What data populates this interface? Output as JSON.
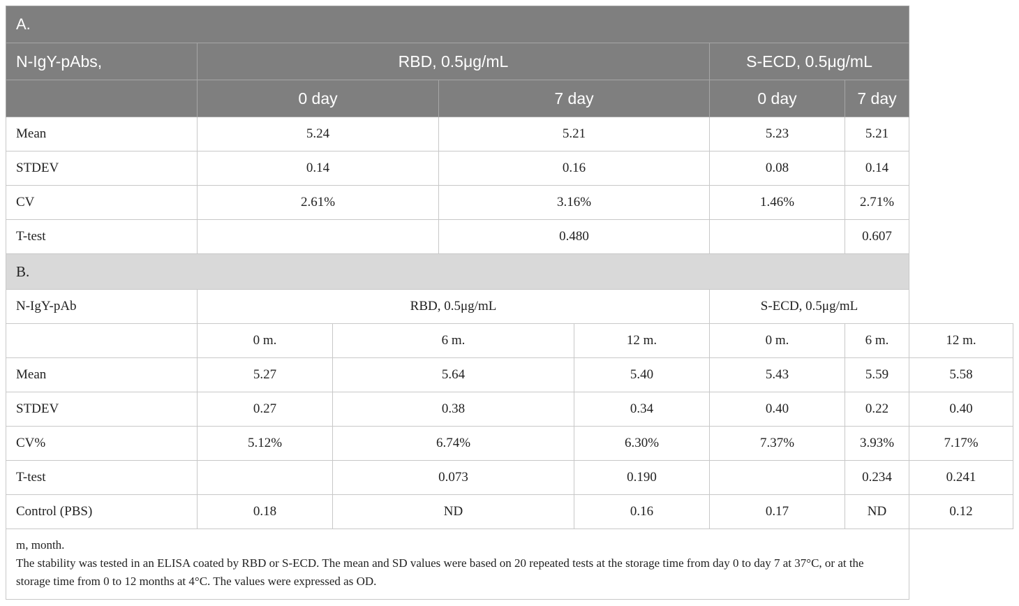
{
  "partA": {
    "section_label": "A.",
    "header": {
      "label": "N-IgY-pAbs,",
      "group1": "RBD, 0.5μg/mL",
      "group2": "S-ECD, 0.5μg/mL"
    },
    "subheader": [
      "0 day",
      "7 day",
      "0 day",
      "7 day"
    ],
    "rows": [
      {
        "label": "Mean",
        "values": [
          "5.24",
          "5.21",
          "5.23",
          "5.21"
        ]
      },
      {
        "label": "STDEV",
        "values": [
          "0.14",
          "0.16",
          "0.08",
          "0.14"
        ]
      },
      {
        "label": "CV",
        "values": [
          "2.61%",
          "3.16%",
          "1.46%",
          "2.71%"
        ]
      },
      {
        "label": "T-test",
        "values": [
          "",
          "0.480",
          "",
          "0.607"
        ]
      }
    ]
  },
  "partB": {
    "section_label": "B.",
    "header": {
      "label": "N-IgY-pAb",
      "group1": "RBD, 0.5μg/mL",
      "group2": "S-ECD, 0.5μg/mL"
    },
    "subheader": [
      "0 m.",
      "6 m.",
      "12 m.",
      "0 m.",
      "6 m.",
      "12 m."
    ],
    "rows": [
      {
        "label": "Mean",
        "values": [
          "5.27",
          "5.64",
          "5.40",
          "5.43",
          "5.59",
          "5.58"
        ]
      },
      {
        "label": "STDEV",
        "values": [
          "0.27",
          "0.38",
          "0.34",
          "0.40",
          "0.22",
          "0.40"
        ]
      },
      {
        "label": "CV%",
        "values": [
          "5.12%",
          "6.74%",
          "6.30%",
          "7.37%",
          "3.93%",
          "7.17%"
        ]
      },
      {
        "label": "T-test",
        "values": [
          "",
          "0.073",
          "0.190",
          "",
          "0.234",
          "0.241"
        ]
      },
      {
        "label": "Control (PBS)",
        "values": [
          "0.18",
          "ND",
          "0.16",
          "0.17",
          "ND",
          "0.12"
        ]
      }
    ]
  },
  "footnote": {
    "line1": "m, month.",
    "line2": "The stability was tested in an ELISA coated by RBD or S-ECD. The mean and SD values were based on 20 repeated tests at the storage time from day 0 to day 7 at 37°C, or at the storage time from 0 to 12 months at 4°C. The values were expressed as OD."
  }
}
